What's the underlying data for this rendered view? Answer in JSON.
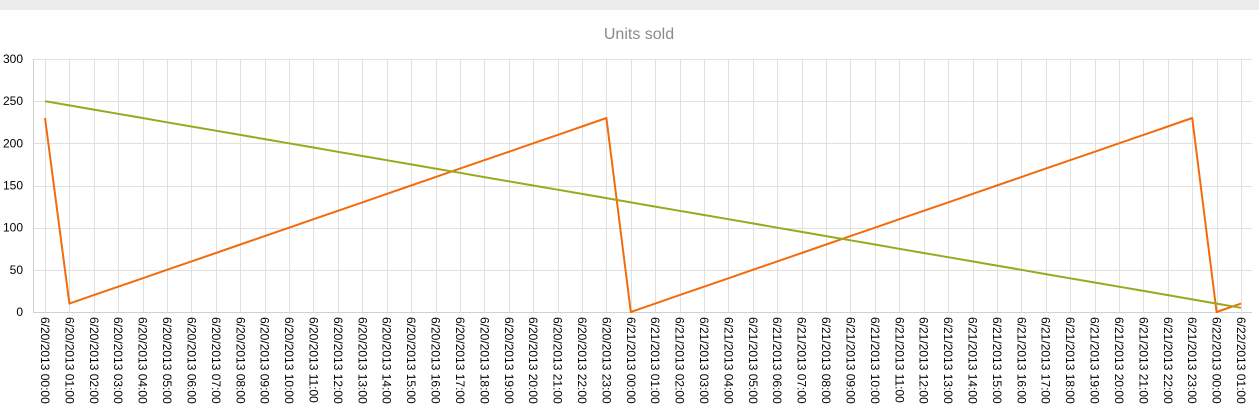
{
  "chart_data": {
    "type": "line",
    "title": "Units sold",
    "xlabel": "",
    "ylabel": "",
    "ylim": [
      0,
      300
    ],
    "yticks": [
      0,
      50,
      100,
      150,
      200,
      250,
      300
    ],
    "grid": true,
    "legend": "none",
    "categories": [
      "6/20/2013 00:00",
      "6/20/2013 01:00",
      "6/20/2013 02:00",
      "6/20/2013 03:00",
      "6/20/2013 04:00",
      "6/20/2013 05:00",
      "6/20/2013 06:00",
      "6/20/2013 07:00",
      "6/20/2013 08:00",
      "6/20/2013 09:00",
      "6/20/2013 10:00",
      "6/20/2013 11:00",
      "6/20/2013 12:00",
      "6/20/2013 13:00",
      "6/20/2013 14:00",
      "6/20/2013 15:00",
      "6/20/2013 16:00",
      "6/20/2013 17:00",
      "6/20/2013 18:00",
      "6/20/2013 19:00",
      "6/20/2013 20:00",
      "6/20/2013 21:00",
      "6/20/2013 22:00",
      "6/20/2013 23:00",
      "6/21/2013 00:00",
      "6/21/2013 01:00",
      "6/21/2013 02:00",
      "6/21/2013 03:00",
      "6/21/2013 04:00",
      "6/21/2013 05:00",
      "6/21/2013 06:00",
      "6/21/2013 07:00",
      "6/21/2013 08:00",
      "6/21/2013 09:00",
      "6/21/2013 10:00",
      "6/21/2013 11:00",
      "6/21/2013 12:00",
      "6/21/2013 13:00",
      "6/21/2013 14:00",
      "6/21/2013 15:00",
      "6/21/2013 16:00",
      "6/21/2013 17:00",
      "6/21/2013 18:00",
      "6/21/2013 19:00",
      "6/21/2013 20:00",
      "6/21/2013 21:00",
      "6/21/2013 22:00",
      "6/21/2013 23:00",
      "6/22/2013 00:00",
      "6/22/2013 01:00"
    ],
    "series": [
      {
        "color": "#f26c0d",
        "values": [
          230,
          10,
          20,
          30,
          40,
          50,
          60,
          70,
          80,
          90,
          100,
          110,
          120,
          130,
          140,
          150,
          160,
          170,
          180,
          190,
          200,
          210,
          220,
          230,
          0,
          10,
          20,
          30,
          40,
          50,
          60,
          70,
          80,
          90,
          100,
          110,
          120,
          130,
          140,
          150,
          160,
          170,
          180,
          190,
          200,
          210,
          220,
          230,
          0,
          10
        ]
      },
      {
        "color": "#9aa81e",
        "values": [
          250,
          245,
          240,
          235,
          230,
          225,
          220,
          215,
          210,
          205,
          200,
          195,
          190,
          185,
          180,
          175,
          170,
          165,
          160,
          155,
          150,
          145,
          140,
          135,
          130,
          125,
          120,
          115,
          110,
          105,
          100,
          95,
          90,
          85,
          80,
          75,
          70,
          65,
          60,
          55,
          50,
          45,
          40,
          35,
          30,
          25,
          20,
          15,
          10,
          5
        ]
      }
    ]
  }
}
